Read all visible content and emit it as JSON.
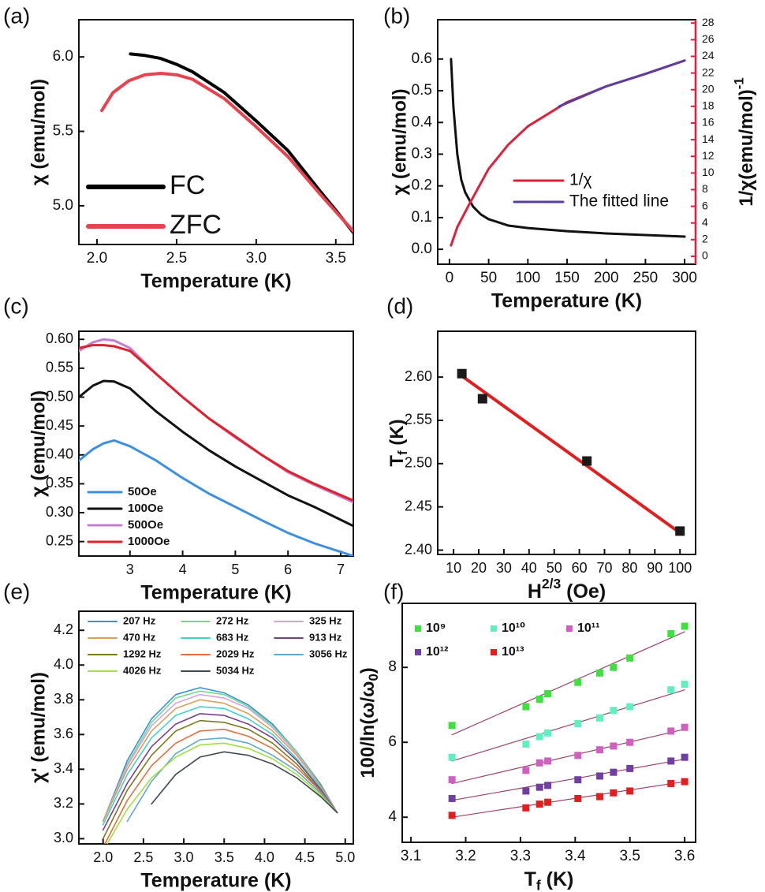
{
  "chart_data": [
    {
      "type": "line",
      "panel_label": "(a)",
      "xlabel": "Temperature (K)",
      "ylabel": "χ (emu/mol)",
      "xlim": [
        1.886,
        3.61
      ],
      "ylim": [
        4.74,
        6.25
      ],
      "xticks": [
        {
          "value": 2,
          "label": "2.0"
        },
        2.5,
        {
          "value": 3,
          "label": "3.0"
        },
        3.5
      ],
      "yticks": [
        {
          "value": 5,
          "label": "5.0"
        },
        5.5,
        {
          "value": 6,
          "label": "6.0"
        }
      ],
      "series": [
        {
          "name": "FC",
          "color": "#000000",
          "x": [
            2.21,
            2.3,
            2.4,
            2.5,
            2.6,
            2.8,
            3.0,
            3.2,
            3.4,
            3.5,
            3.61
          ],
          "values": [
            6.02,
            6.01,
            5.99,
            5.95,
            5.9,
            5.76,
            5.57,
            5.37,
            5.1,
            4.97,
            4.82
          ]
        },
        {
          "name": "ZFC",
          "color": "#e8424f",
          "x": [
            2.03,
            2.1,
            2.2,
            2.3,
            2.4,
            2.5,
            2.6,
            2.8,
            3.0,
            3.2,
            3.4,
            3.5,
            3.61
          ],
          "values": [
            5.64,
            5.76,
            5.84,
            5.88,
            5.89,
            5.88,
            5.85,
            5.72,
            5.53,
            5.33,
            5.08,
            4.96,
            4.83
          ]
        }
      ]
    },
    {
      "type": "line",
      "panel_label": "(b)",
      "xlabel": "Temperature (K)",
      "ylabel": "χ (emu/mol)",
      "y2label": {
        "text": "1/χ(emu/mol)",
        "sup": "-1"
      },
      "xlim": [
        -15,
        314
      ],
      "ylim": [
        -0.047,
        0.724
      ],
      "y2lim": [
        -0.95,
        28.4
      ],
      "y2color": "#e0203a",
      "xticks": [
        0,
        50,
        100,
        150,
        200,
        250,
        300
      ],
      "yticks": [
        {
          "value": 0,
          "label": "0.0"
        },
        0.1,
        0.2,
        0.3,
        0.4,
        0.5,
        0.6
      ],
      "y2ticks": [
        0,
        2,
        4,
        6,
        8,
        10,
        12,
        14,
        16,
        18,
        20,
        22,
        24,
        26,
        28
      ],
      "series": [
        {
          "color": "#111111",
          "x": [
            2,
            5,
            10,
            15,
            20,
            30,
            40,
            50,
            75,
            100,
            150,
            200,
            250,
            300
          ],
          "values": [
            0.6,
            0.45,
            0.3,
            0.22,
            0.18,
            0.135,
            0.11,
            0.095,
            0.075,
            0.067,
            0.057,
            0.05,
            0.045,
            0.04
          ]
        },
        {
          "name": "1/χ",
          "color": "#e0203a",
          "axis": "y2",
          "x": [
            2,
            10,
            25,
            50,
            75,
            100,
            150,
            200,
            250,
            300
          ],
          "values": [
            1.3,
            3.5,
            6.2,
            10.5,
            13.4,
            15.6,
            18.5,
            20.4,
            21.9,
            23.5
          ]
        },
        {
          "name": "The fitted line",
          "color": "#5a3ea0",
          "axis": "y2",
          "x": [
            140,
            200,
            250,
            300
          ],
          "values": [
            18.0,
            20.4,
            21.9,
            23.5
          ]
        }
      ]
    },
    {
      "type": "line",
      "panel_label": "(c)",
      "xlabel": "Temperature (K)",
      "ylabel": "χ (emu/mol)",
      "xlim": [
        2.03,
        7.24
      ],
      "ylim": [
        0.225,
        0.614
      ],
      "xticks": [
        3,
        4,
        5,
        6,
        7
      ],
      "yticks": [
        0.25,
        {
          "value": 0.3,
          "label": "0.30"
        },
        0.35,
        {
          "value": 0.4,
          "label": "0.40"
        },
        0.45,
        {
          "value": 0.5,
          "label": "0.50"
        },
        0.55,
        {
          "value": 0.6,
          "label": "0.60"
        }
      ],
      "x": [
        2.03,
        2.3,
        2.5,
        2.7,
        3,
        3.5,
        4,
        4.5,
        5,
        5.5,
        6,
        6.5,
        7.24
      ],
      "series": [
        {
          "name": "50Oe",
          "color": "#3d8fe0",
          "values": [
            0.39,
            0.41,
            0.42,
            0.425,
            0.415,
            0.39,
            0.36,
            0.333,
            0.31,
            0.287,
            0.265,
            0.247,
            0.225
          ]
        },
        {
          "name": "100Oe",
          "color": "#111111",
          "values": [
            0.5,
            0.52,
            0.528,
            0.527,
            0.515,
            0.475,
            0.44,
            0.408,
            0.38,
            0.355,
            0.33,
            0.31,
            0.277
          ]
        },
        {
          "name": "500Oe",
          "color": "#c47fd0",
          "values": [
            0.58,
            0.595,
            0.6,
            0.598,
            0.585,
            0.54,
            0.5,
            0.463,
            0.43,
            0.4,
            0.37,
            0.348,
            0.318
          ]
        },
        {
          "name": "1000Oe",
          "color": "#e0202a",
          "values": [
            0.585,
            0.59,
            0.59,
            0.588,
            0.58,
            0.54,
            0.5,
            0.463,
            0.432,
            0.4,
            0.372,
            0.35,
            0.321
          ]
        }
      ]
    },
    {
      "type": "scatter",
      "panel_label": "(d)",
      "xlabel": {
        "text": "H",
        "sup": "2/3",
        "after": " (Oe)"
      },
      "ylabel": {
        "text": "T",
        "sub": "f",
        "after": " (K)"
      },
      "xlim": [
        3.7,
        106.2
      ],
      "ylim": [
        2.395,
        2.653
      ],
      "xticks": [
        10,
        20,
        30,
        40,
        50,
        60,
        70,
        80,
        90,
        100
      ],
      "yticks": [
        {
          "value": 2.4,
          "label": "2.40"
        },
        2.45,
        {
          "value": 2.5,
          "label": "2.50"
        },
        2.55,
        {
          "value": 2.6,
          "label": "2.60"
        }
      ],
      "series": [
        {
          "color": "#e02020",
          "style": "line",
          "x": [
            13,
            100
          ],
          "values": [
            2.602,
            2.42
          ]
        },
        {
          "color": "#1a1a1a",
          "x": [
            13.3,
            21.5,
            63,
            100
          ],
          "values": [
            2.604,
            2.575,
            2.503,
            2.422
          ]
        }
      ]
    },
    {
      "type": "line",
      "panel_label": "(e)",
      "xlabel": "Temperature (K)",
      "ylabel": "χ' (emu/mol)",
      "xlim": [
        1.7,
        5.1
      ],
      "ylim": [
        2.97,
        4.31
      ],
      "xticks": [
        {
          "value": 2,
          "label": "2.0"
        },
        2.5,
        {
          "value": 3,
          "label": "3.0"
        },
        3.5,
        {
          "value": 4,
          "label": "4.0"
        },
        4.5,
        {
          "value": 5,
          "label": "5.0"
        }
      ],
      "yticks": [
        {
          "value": 3,
          "label": "3.0"
        },
        3.2,
        3.4,
        3.6,
        3.8,
        {
          "value": 4,
          "label": "4.0"
        },
        4.2
      ],
      "x": [
        2.0,
        2.3,
        2.6,
        2.9,
        3.2,
        3.5,
        3.8,
        4.1,
        4.4,
        4.7,
        4.9
      ],
      "series": [
        {
          "name": "207 Hz",
          "color": "#3b8fd9",
          "values": [
            3.1,
            3.45,
            3.69,
            3.83,
            3.87,
            3.84,
            3.77,
            3.66,
            3.5,
            3.31,
            3.15
          ]
        },
        {
          "name": "272 Hz",
          "color": "#6fdc8c",
          "values": [
            3.1,
            3.43,
            3.67,
            3.81,
            3.85,
            3.83,
            3.76,
            3.65,
            3.5,
            3.3,
            3.15
          ]
        },
        {
          "name": "325 Hz",
          "color": "#d9a0e0",
          "values": [
            3.1,
            3.42,
            3.65,
            3.78,
            3.83,
            3.81,
            3.75,
            3.64,
            3.49,
            3.3,
            3.15
          ]
        },
        {
          "name": "470 Hz",
          "color": "#d9a05a",
          "values": [
            3.1,
            3.4,
            3.62,
            3.75,
            3.8,
            3.78,
            3.72,
            3.62,
            3.48,
            3.3,
            3.15
          ]
        },
        {
          "name": "683 Hz",
          "color": "#40d0d0",
          "values": [
            3.08,
            3.37,
            3.58,
            3.71,
            3.76,
            3.75,
            3.69,
            3.6,
            3.46,
            3.29,
            3.15
          ]
        },
        {
          "name": "913 Hz",
          "color": "#7a3f8a",
          "values": [
            3.05,
            3.32,
            3.53,
            3.66,
            3.72,
            3.71,
            3.66,
            3.58,
            3.45,
            3.28,
            3.15
          ]
        },
        {
          "name": "1292 Hz",
          "color": "#7a7a1a",
          "values": [
            3.0,
            3.28,
            3.48,
            3.62,
            3.68,
            3.67,
            3.63,
            3.55,
            3.43,
            3.27,
            3.15
          ]
        },
        {
          "name": "2029 Hz",
          "color": "#e07040",
          "values": [
            2.95,
            3.22,
            3.42,
            3.55,
            3.62,
            3.63,
            3.59,
            3.52,
            3.41,
            3.27,
            3.15
          ]
        },
        {
          "name": "3056 Hz",
          "color": "#60a8d0",
          "values": [
            null,
            3.1,
            3.33,
            3.49,
            3.57,
            3.58,
            3.55,
            3.48,
            3.39,
            3.26,
            3.15
          ]
        },
        {
          "name": "4026 Hz",
          "color": "#a0e040",
          "values": [
            2.93,
            3.17,
            3.35,
            3.47,
            3.54,
            3.55,
            3.52,
            3.46,
            3.37,
            3.25,
            3.15
          ]
        },
        {
          "name": "5034 Hz",
          "color": "#404a55",
          "values": [
            null,
            null,
            3.2,
            3.37,
            3.47,
            3.5,
            3.48,
            3.43,
            3.35,
            3.24,
            3.15
          ]
        }
      ]
    },
    {
      "type": "scatter",
      "panel_label": "(f)",
      "xlabel": {
        "text": "T",
        "sub": "f",
        "after": " (K)"
      },
      "ylabel": {
        "text": "100/ln(ω/ω",
        "sub": "0",
        "after": ")"
      },
      "xlim": [
        3.084,
        3.62
      ],
      "ylim": [
        3.33,
        9.71
      ],
      "xticks": [
        3.1,
        3.2,
        3.3,
        3.4,
        3.5,
        3.6
      ],
      "yticks": [
        4,
        6,
        8
      ],
      "x": [
        3.175,
        3.31,
        3.335,
        3.35,
        3.405,
        3.445,
        3.47,
        3.5,
        3.575,
        3.6
      ],
      "series": [
        {
          "name": "10⁹",
          "color": "#40e040",
          "values": [
            6.45,
            6.95,
            7.15,
            7.3,
            7.6,
            7.85,
            8.0,
            8.25,
            8.9,
            9.1
          ]
        },
        {
          "name": "10¹⁰",
          "color": "#60f0c0",
          "values": [
            5.6,
            5.95,
            6.15,
            6.25,
            6.5,
            6.65,
            6.85,
            6.95,
            7.4,
            7.55
          ]
        },
        {
          "name": "10¹¹",
          "color": "#d060c0",
          "values": [
            5.0,
            5.25,
            5.45,
            5.5,
            5.65,
            5.8,
            5.9,
            6.0,
            6.3,
            6.4
          ]
        },
        {
          "name": "10¹²",
          "color": "#7040a0",
          "values": [
            4.5,
            4.7,
            4.8,
            4.85,
            5.0,
            5.1,
            5.2,
            5.3,
            5.5,
            5.6
          ]
        },
        {
          "name": "10¹³",
          "color": "#e02020",
          "values": [
            4.05,
            4.25,
            4.35,
            4.4,
            4.5,
            4.55,
            4.65,
            4.7,
            4.9,
            4.95
          ]
        },
        {
          "color": "#a0406a",
          "style": "line",
          "x": [
            3.175,
            3.6
          ],
          "values": [
            6.2,
            8.95
          ]
        },
        {
          "color": "#a0406a",
          "style": "line",
          "x": [
            3.175,
            3.6
          ],
          "values": [
            5.5,
            7.4
          ]
        },
        {
          "color": "#a0406a",
          "style": "line",
          "x": [
            3.175,
            3.6
          ],
          "values": [
            4.9,
            6.35
          ]
        },
        {
          "color": "#a0406a",
          "style": "line",
          "x": [
            3.175,
            3.6
          ],
          "values": [
            4.45,
            5.55
          ]
        },
        {
          "color": "#a0406a",
          "style": "line",
          "x": [
            3.175,
            3.6
          ],
          "values": [
            4.0,
            4.95
          ]
        }
      ]
    }
  ]
}
